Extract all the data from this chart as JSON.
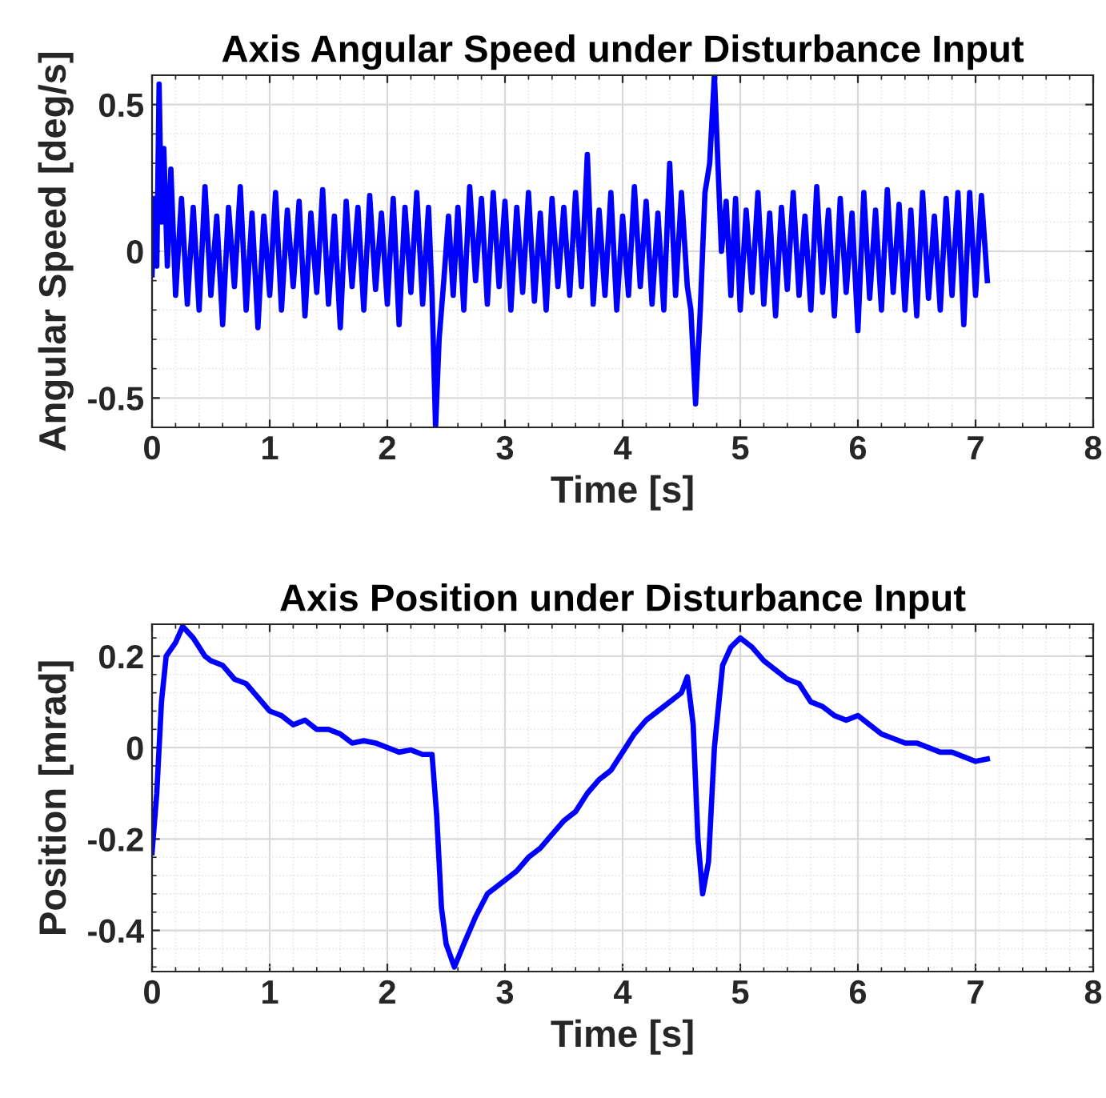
{
  "chart_data": [
    {
      "type": "line",
      "title": "Axis Angular Speed under Disturbance Input",
      "xlabel": "Time [s]",
      "ylabel": "Angular Speed [deg/s]",
      "xlim": [
        0,
        8
      ],
      "xticks": [
        0,
        1,
        2,
        3,
        4,
        5,
        6,
        7,
        8
      ],
      "ylim": [
        -0.6,
        0.6
      ],
      "yticks": [
        -0.5,
        0,
        0.5
      ],
      "grid": true,
      "line_style": "solid",
      "series": [
        {
          "color": "#0000ff",
          "x": [
            0,
            0.02,
            0.04,
            0.06,
            0.08,
            0.1,
            0.13,
            0.16,
            0.2,
            0.25,
            0.3,
            0.35,
            0.4,
            0.45,
            0.5,
            0.55,
            0.6,
            0.65,
            0.7,
            0.75,
            0.8,
            0.85,
            0.9,
            0.95,
            1.0,
            1.05,
            1.1,
            1.15,
            1.2,
            1.25,
            1.3,
            1.35,
            1.4,
            1.45,
            1.5,
            1.55,
            1.6,
            1.65,
            1.7,
            1.75,
            1.8,
            1.85,
            1.9,
            1.95,
            2.0,
            2.05,
            2.1,
            2.15,
            2.2,
            2.25,
            2.3,
            2.35,
            2.38,
            2.41,
            2.44,
            2.48,
            2.52,
            2.56,
            2.6,
            2.65,
            2.7,
            2.75,
            2.8,
            2.85,
            2.9,
            2.95,
            3.0,
            3.05,
            3.1,
            3.15,
            3.2,
            3.25,
            3.3,
            3.35,
            3.4,
            3.45,
            3.5,
            3.55,
            3.6,
            3.65,
            3.7,
            3.75,
            3.8,
            3.85,
            3.9,
            3.95,
            4.0,
            4.05,
            4.1,
            4.15,
            4.2,
            4.25,
            4.3,
            4.35,
            4.4,
            4.45,
            4.5,
            4.55,
            4.58,
            4.62,
            4.66,
            4.7,
            4.74,
            4.78,
            4.81,
            4.84,
            4.88,
            4.92,
            4.96,
            5.0,
            5.05,
            5.1,
            5.15,
            5.2,
            5.25,
            5.3,
            5.35,
            5.4,
            5.45,
            5.5,
            5.55,
            5.6,
            5.65,
            5.7,
            5.75,
            5.8,
            5.85,
            5.9,
            5.95,
            6.0,
            6.05,
            6.1,
            6.15,
            6.2,
            6.25,
            6.3,
            6.35,
            6.4,
            6.45,
            6.5,
            6.55,
            6.6,
            6.65,
            6.7,
            6.75,
            6.8,
            6.85,
            6.9,
            6.95,
            7.0,
            7.05,
            7.1
          ],
          "values": [
            -0.08,
            0.18,
            -0.05,
            0.57,
            0.1,
            0.35,
            -0.05,
            0.28,
            -0.15,
            0.18,
            -0.18,
            0.15,
            -0.2,
            0.22,
            -0.15,
            0.12,
            -0.25,
            0.15,
            -0.12,
            0.22,
            -0.2,
            0.13,
            -0.26,
            0.12,
            -0.15,
            0.2,
            -0.2,
            0.14,
            -0.12,
            0.17,
            -0.22,
            0.13,
            -0.14,
            0.21,
            -0.18,
            0.12,
            -0.26,
            0.17,
            -0.12,
            0.15,
            -0.2,
            0.19,
            -0.13,
            0.13,
            -0.18,
            0.18,
            -0.25,
            0.15,
            -0.14,
            0.2,
            -0.18,
            0.15,
            -0.15,
            -0.6,
            -0.3,
            -0.1,
            0.12,
            -0.15,
            0.15,
            -0.2,
            0.22,
            -0.1,
            0.18,
            -0.18,
            0.2,
            -0.12,
            0.17,
            -0.2,
            0.15,
            -0.14,
            0.2,
            -0.17,
            0.13,
            -0.2,
            0.18,
            -0.12,
            0.15,
            -0.15,
            0.2,
            -0.12,
            0.33,
            -0.18,
            0.14,
            -0.15,
            0.2,
            -0.2,
            0.12,
            -0.15,
            0.22,
            -0.12,
            0.17,
            -0.18,
            0.13,
            -0.2,
            0.3,
            -0.15,
            0.2,
            -0.12,
            -0.2,
            -0.52,
            -0.2,
            0.2,
            0.3,
            0.6,
            0.3,
            0.0,
            0.17,
            -0.15,
            0.18,
            -0.2,
            0.14,
            -0.14,
            0.2,
            -0.18,
            0.13,
            -0.22,
            0.15,
            -0.13,
            0.2,
            -0.15,
            0.12,
            -0.2,
            0.22,
            -0.14,
            0.14,
            -0.22,
            0.18,
            -0.14,
            0.13,
            -0.27,
            0.2,
            -0.16,
            0.14,
            -0.2,
            0.21,
            -0.14,
            0.16,
            -0.2,
            0.14,
            -0.22,
            0.2,
            -0.16,
            0.12,
            -0.2,
            0.18,
            -0.15,
            0.2,
            -0.25,
            0.2,
            -0.15,
            0.19,
            -0.1
          ]
        }
      ]
    },
    {
      "type": "line",
      "title": "Axis Position under Disturbance Input",
      "xlabel": "Time [s]",
      "ylabel": "Position [mrad]",
      "xlim": [
        0,
        8
      ],
      "xticks": [
        0,
        1,
        2,
        3,
        4,
        5,
        6,
        7,
        8
      ],
      "ylim": [
        -0.49,
        0.27
      ],
      "yticks": [
        -0.4,
        -0.2,
        0,
        0.2
      ],
      "grid": true,
      "line_style": "solid",
      "series": [
        {
          "color": "#0000ff",
          "x": [
            0,
            0.04,
            0.08,
            0.12,
            0.2,
            0.26,
            0.35,
            0.45,
            0.5,
            0.6,
            0.7,
            0.8,
            0.9,
            1.0,
            1.1,
            1.2,
            1.3,
            1.4,
            1.5,
            1.6,
            1.7,
            1.8,
            1.9,
            2.0,
            2.1,
            2.2,
            2.3,
            2.38,
            2.42,
            2.46,
            2.5,
            2.57,
            2.65,
            2.75,
            2.85,
            3.0,
            3.1,
            3.2,
            3.3,
            3.4,
            3.5,
            3.6,
            3.7,
            3.8,
            3.9,
            4.0,
            4.1,
            4.2,
            4.3,
            4.4,
            4.5,
            4.55,
            4.6,
            4.64,
            4.68,
            4.73,
            4.78,
            4.85,
            4.92,
            5.0,
            5.1,
            5.2,
            5.3,
            5.4,
            5.5,
            5.6,
            5.7,
            5.8,
            5.9,
            6.0,
            6.1,
            6.2,
            6.3,
            6.4,
            6.5,
            6.6,
            6.7,
            6.8,
            6.9,
            7.0,
            7.1
          ],
          "values": [
            -0.23,
            -0.1,
            0.1,
            0.2,
            0.23,
            0.265,
            0.24,
            0.2,
            0.19,
            0.18,
            0.15,
            0.14,
            0.11,
            0.08,
            0.07,
            0.05,
            0.06,
            0.04,
            0.04,
            0.03,
            0.01,
            0.015,
            0.01,
            0.0,
            -0.01,
            -0.005,
            -0.015,
            -0.015,
            -0.15,
            -0.35,
            -0.43,
            -0.48,
            -0.43,
            -0.37,
            -0.32,
            -0.29,
            -0.27,
            -0.24,
            -0.22,
            -0.19,
            -0.16,
            -0.14,
            -0.1,
            -0.07,
            -0.05,
            -0.01,
            0.03,
            0.06,
            0.08,
            0.1,
            0.12,
            0.155,
            0.05,
            -0.2,
            -0.32,
            -0.25,
            0.0,
            0.18,
            0.22,
            0.24,
            0.22,
            0.19,
            0.17,
            0.15,
            0.14,
            0.1,
            0.09,
            0.07,
            0.06,
            0.07,
            0.05,
            0.03,
            0.02,
            0.01,
            0.01,
            0.0,
            -0.01,
            -0.01,
            -0.02,
            -0.03,
            -0.025
          ]
        }
      ]
    }
  ]
}
